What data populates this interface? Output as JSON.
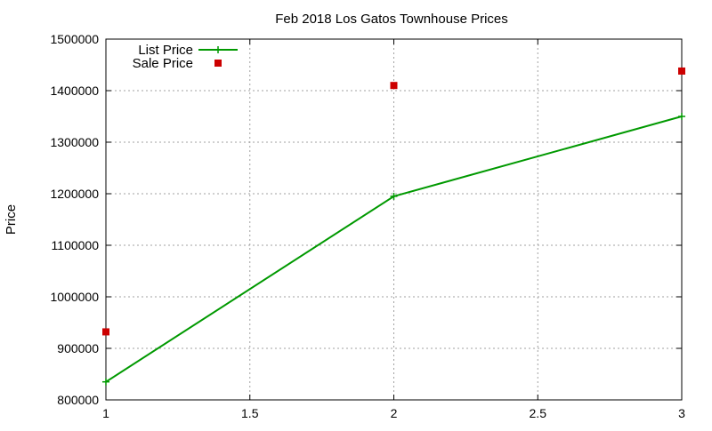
{
  "chart_data": {
    "type": "line",
    "title": "Feb 2018 Los Gatos Townhouse Prices",
    "xlabel": "",
    "ylabel": "Price",
    "xlim": [
      1,
      3
    ],
    "ylim": [
      800000,
      1500000
    ],
    "xticks": [
      1,
      1.5,
      2,
      2.5,
      3
    ],
    "xtick_labels": [
      "1",
      "1.5",
      "2",
      "2.5",
      "3"
    ],
    "yticks": [
      800000,
      900000,
      1000000,
      1100000,
      1200000,
      1300000,
      1400000,
      1500000
    ],
    "ytick_labels": [
      "800000",
      "900000",
      "1000000",
      "1100000",
      "1200000",
      "1300000",
      "1400000",
      "1500000"
    ],
    "grid": true,
    "legend_position": "top-left",
    "series": [
      {
        "name": "List Price",
        "style": "linespoints",
        "marker": "plus",
        "color": "#009900",
        "x": [
          1,
          2,
          3
        ],
        "y": [
          835000,
          1195000,
          1350000
        ]
      },
      {
        "name": "Sale Price",
        "style": "points",
        "marker": "square",
        "color": "#cc0000",
        "x": [
          1,
          2,
          3
        ],
        "y": [
          932000,
          1410000,
          1438000
        ]
      }
    ]
  }
}
